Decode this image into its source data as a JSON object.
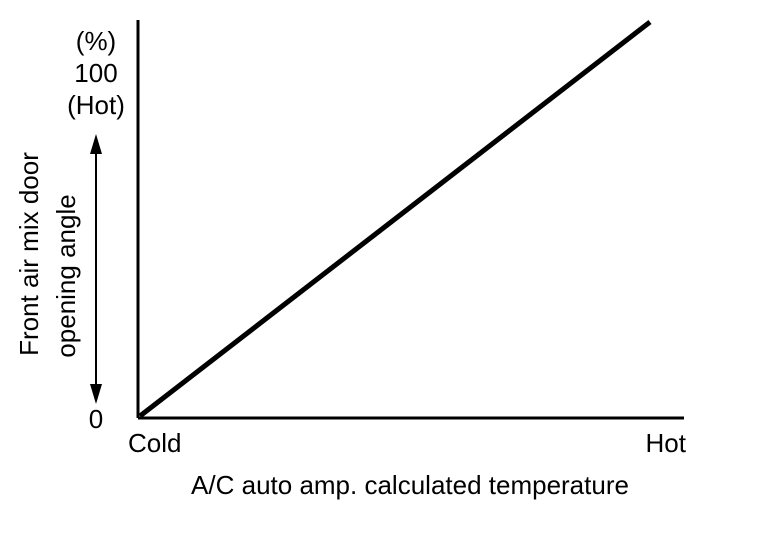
{
  "chart_data": {
    "type": "line",
    "title": "",
    "xlabel": "A/C auto amp. calculated temperature",
    "ylabel_line1": "Front air mix door",
    "ylabel_line2": "opening angle",
    "x_categories": [
      "Cold",
      "Hot"
    ],
    "y_unit": "(%)",
    "y_top_value": "100",
    "y_top_note": "(Hot)",
    "y_bottom_value": "0",
    "xlim": [
      0,
      1
    ],
    "ylim": [
      0,
      100
    ],
    "series": [
      {
        "points": [
          {
            "x": 0,
            "y": 0
          },
          {
            "x": 1,
            "y": 100
          }
        ]
      }
    ],
    "grid": false,
    "legend": "none",
    "line_color": "#000000"
  }
}
